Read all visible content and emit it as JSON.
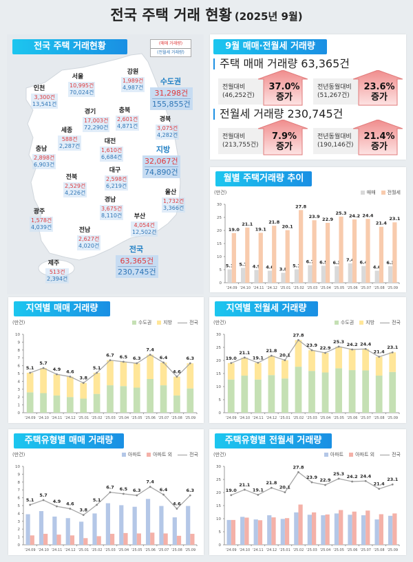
{
  "title": "전국 주택 거래 현황",
  "title_sub": "(2025년 9월)",
  "map": {
    "banner": "전국 주택 거래현황",
    "legend": {
      "sales": "(매매 거래량)",
      "rent": "(전월세 거래량)"
    },
    "regions": [
      {
        "name": "강원",
        "sales": "1,989건",
        "rent": "4,987건"
      },
      {
        "name": "서울",
        "sales": "10,995건",
        "rent": "70,024건"
      },
      {
        "name": "인천",
        "sales": "3,300건",
        "rent": "13,541건"
      },
      {
        "name": "경기",
        "sales": "17,003건",
        "rent": "72,290건"
      },
      {
        "name": "충북",
        "sales": "2,601건",
        "rent": "4,871건"
      },
      {
        "name": "경북",
        "sales": "3,075건",
        "rent": "4,282건"
      },
      {
        "name": "세종",
        "sales": "588건",
        "rent": "2,287건"
      },
      {
        "name": "대전",
        "sales": "1,610건",
        "rent": "6,684건"
      },
      {
        "name": "충남",
        "sales": "2,898건",
        "rent": "6,903건"
      },
      {
        "name": "대구",
        "sales": "2,598건",
        "rent": "6,219건"
      },
      {
        "name": "전북",
        "sales": "2,529건",
        "rent": "4,226건"
      },
      {
        "name": "울산",
        "sales": "1,732건",
        "rent": "3,366건"
      },
      {
        "name": "경남",
        "sales": "3,675건",
        "rent": "8,110건"
      },
      {
        "name": "광주",
        "sales": "1,578건",
        "rent": "4,039건"
      },
      {
        "name": "부산",
        "sales": "4,054건",
        "rent": "12,502건"
      },
      {
        "name": "전남",
        "sales": "2,627건",
        "rent": "4,020건"
      },
      {
        "name": "제주",
        "sales": "513건",
        "rent": "2,394건"
      }
    ],
    "summaries": [
      {
        "name": "수도권",
        "sales": "31,298건",
        "rent": "155,855건"
      },
      {
        "name": "지방",
        "sales": "32,067건",
        "rent": "74,890건"
      },
      {
        "name": "전국",
        "sales": "63,365건",
        "rent": "230,745건"
      }
    ]
  },
  "summary": {
    "banner": "9월 매매·전월세 거래량",
    "sections": [
      {
        "heading": "주택 매매 거래량 63,365건",
        "cards": [
          {
            "label": "전월대비",
            "base": "(46,252건)",
            "pct": "37.0%",
            "change": "증가"
          },
          {
            "label": "전년동월대비",
            "base": "(51,267건)",
            "pct": "23.6%",
            "change": "증가"
          }
        ]
      },
      {
        "heading": "전월세 거래량 230,745건",
        "cards": [
          {
            "label": "전월대비",
            "base": "(213,755건)",
            "pct": "7.9%",
            "change": "증가"
          },
          {
            "label": "전년동월대비",
            "base": "(190,146건)",
            "pct": "21.4%",
            "change": "증가"
          }
        ]
      }
    ],
    "arrow_color": "#f4a6a6"
  },
  "chart_data": [
    {
      "type": "bar",
      "title": "월별 주택거래량 추이",
      "unit": "(만건)",
      "mode": "grouped",
      "ylim": [
        0,
        30
      ],
      "ystep": 5,
      "categories": [
        "'24.09",
        "'24.10",
        "'24.11",
        "'24.12",
        "'25.01",
        "'25.02",
        "'25.03",
        "'25.04",
        "'25.05",
        "'25.06",
        "'25.07",
        "'25.08",
        "'25.09"
      ],
      "series": [
        {
          "name": "매매",
          "color": "#d9d9d9",
          "values": [
            5.1,
            5.7,
            4.9,
            4.6,
            3.8,
            5.1,
            6.7,
            6.5,
            6.3,
            7.4,
            6.4,
            4.6,
            6.3
          ],
          "labels": true
        },
        {
          "name": "전월세",
          "color": "#f8cbad",
          "values": [
            19.0,
            21.1,
            19.1,
            21.8,
            20.1,
            27.8,
            23.9,
            22.9,
            25.3,
            24.2,
            24.4,
            21.4,
            23.1
          ],
          "labels": true
        }
      ]
    },
    {
      "type": "bar",
      "title": "지역별 매매 거래량",
      "unit": "(만건)",
      "mode": "stacked",
      "ylim": [
        0,
        10
      ],
      "ystep": 1,
      "categories": [
        "'24.09",
        "'24.10",
        "'24.11",
        "'24.12",
        "'25.01",
        "'25.02",
        "'25.03",
        "'25.04",
        "'25.05",
        "'25.06",
        "'25.07",
        "'25.08",
        "'25.09"
      ],
      "series": [
        {
          "name": "수도권",
          "color": "#c5e0b4",
          "values": [
            2.6,
            2.5,
            2.2,
            2.0,
            1.8,
            2.4,
            3.5,
            3.4,
            3.2,
            4.3,
            3.5,
            2.2,
            3.1
          ]
        },
        {
          "name": "지방",
          "color": "#ffe699",
          "values": [
            2.5,
            3.2,
            2.7,
            2.6,
            2.0,
            2.7,
            3.2,
            3.1,
            3.1,
            3.1,
            2.9,
            2.4,
            3.2
          ]
        }
      ],
      "line": {
        "name": "전국",
        "color": "#a6a6a6",
        "values": [
          5.1,
          5.7,
          4.9,
          4.6,
          3.8,
          5.1,
          6.7,
          6.5,
          6.3,
          7.4,
          6.4,
          4.6,
          6.3
        ]
      }
    },
    {
      "type": "bar",
      "title": "지역별 전월세 거래량",
      "unit": "(만건)",
      "mode": "stacked",
      "ylim": [
        0,
        30
      ],
      "ystep": 5,
      "categories": [
        "'24.09",
        "'24.10",
        "'24.11",
        "'24.12",
        "'25.01",
        "'25.02",
        "'25.03",
        "'25.04",
        "'25.05",
        "'25.06",
        "'25.07",
        "'25.08",
        "'25.09"
      ],
      "series": [
        {
          "name": "수도권",
          "color": "#c5e0b4",
          "values": [
            12.7,
            14.2,
            12.7,
            14.4,
            13.1,
            17.6,
            16.0,
            15.4,
            17.0,
            16.3,
            16.2,
            14.2,
            15.6
          ]
        },
        {
          "name": "지방",
          "color": "#ffe699",
          "values": [
            6.3,
            6.9,
            6.4,
            7.4,
            7.0,
            10.2,
            7.9,
            7.5,
            8.3,
            7.9,
            8.2,
            7.2,
            7.5
          ]
        }
      ],
      "line": {
        "name": "전국",
        "color": "#a6a6a6",
        "values": [
          19.0,
          21.1,
          19.1,
          21.8,
          20.1,
          27.8,
          23.9,
          22.9,
          25.3,
          24.2,
          24.4,
          21.4,
          23.1
        ]
      }
    },
    {
      "type": "bar",
      "title": "주택유형별 매매 거래량",
      "unit": "(만건)",
      "mode": "grouped",
      "ylim": [
        0,
        10
      ],
      "ystep": 1,
      "categories": [
        "'24.09",
        "'24.10",
        "'24.11",
        "'24.12",
        "'25.01",
        "'25.02",
        "'25.03",
        "'25.04",
        "'25.05",
        "'25.06",
        "'25.07",
        "'25.08",
        "'25.09"
      ],
      "series": [
        {
          "name": "아파트",
          "color": "#b4c7e7",
          "values": [
            3.9,
            4.3,
            3.6,
            3.4,
            2.95,
            4.0,
            5.3,
            5.05,
            4.85,
            5.85,
            4.95,
            3.5,
            4.95
          ]
        },
        {
          "name": "아파트 외",
          "color": "#f4b1a8",
          "values": [
            1.2,
            1.4,
            1.3,
            1.2,
            0.85,
            1.1,
            1.4,
            1.5,
            1.45,
            1.55,
            1.45,
            1.15,
            1.4
          ]
        }
      ],
      "line": {
        "name": "전국",
        "color": "#a6a6a6",
        "values": [
          5.1,
          5.7,
          4.9,
          4.6,
          3.8,
          5.1,
          6.7,
          6.5,
          6.3,
          7.4,
          6.4,
          4.6,
          6.3
        ]
      }
    },
    {
      "type": "bar",
      "title": "주택유형별 전월세 거래량",
      "unit": "(만건)",
      "mode": "grouped",
      "ylim": [
        0,
        30
      ],
      "ystep": 5,
      "categories": [
        "'24.09",
        "'24.10",
        "'24.11",
        "'24.12",
        "'25.01",
        "'25.02",
        "'25.03",
        "'25.04",
        "'25.05",
        "'25.06",
        "'25.07",
        "'25.08",
        "'25.09"
      ],
      "series": [
        {
          "name": "아파트",
          "color": "#b4c7e7",
          "values": [
            9.5,
            10.7,
            9.7,
            11.3,
            9.9,
            12.4,
            11.5,
            11.3,
            12.0,
            11.5,
            11.3,
            9.7,
            11.1
          ]
        },
        {
          "name": "아파트 외",
          "color": "#f4b1a8",
          "values": [
            9.5,
            10.4,
            9.4,
            10.5,
            10.2,
            15.4,
            12.4,
            11.6,
            13.3,
            12.7,
            13.1,
            11.7,
            12.0
          ]
        }
      ],
      "line": {
        "name": "전국",
        "color": "#a6a6a6",
        "values": [
          19.0,
          21.1,
          19.1,
          21.8,
          20.1,
          27.8,
          23.9,
          22.9,
          25.3,
          24.2,
          24.4,
          21.4,
          23.1
        ]
      }
    }
  ]
}
